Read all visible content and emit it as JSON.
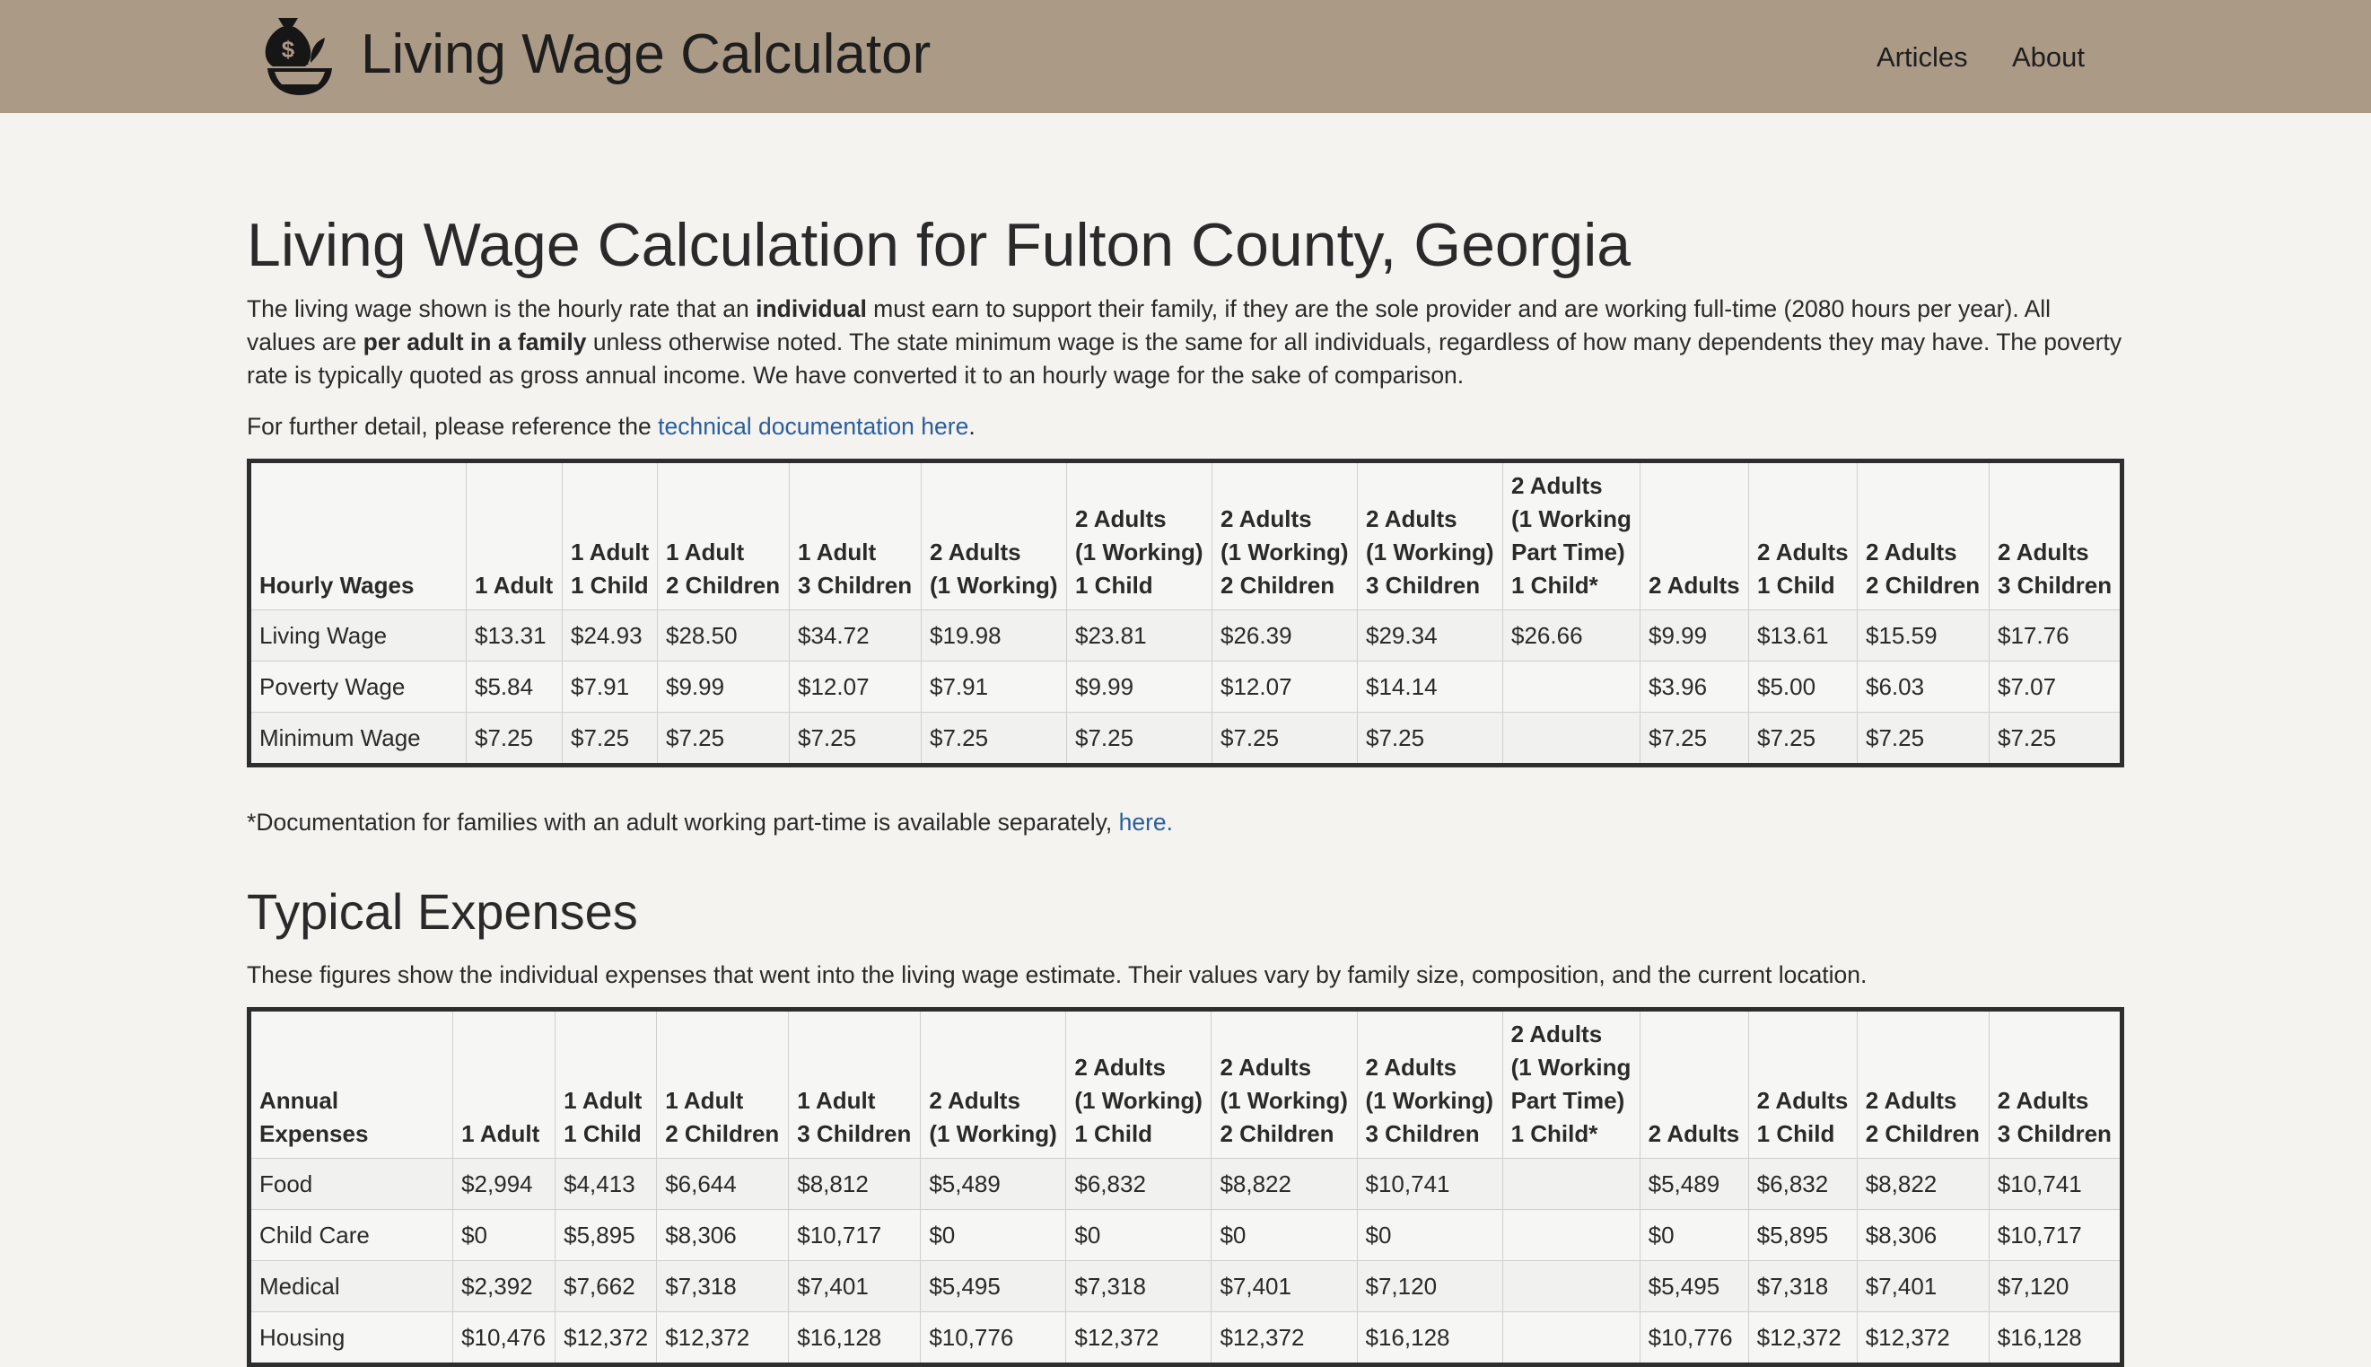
{
  "header": {
    "site_title": "Living Wage Calculator",
    "nav": [
      "Articles",
      "About"
    ],
    "logo_icon": "money-bag-bowl-icon"
  },
  "page": {
    "title": "Living Wage Calculation for Fulton County, Georgia",
    "intro": {
      "p1": "The living wage shown is the hourly rate that an ",
      "b1": "individual",
      "p2": " must earn to support their family, if they are the sole provider and are working full-time (2080 hours per year). All values are ",
      "b2": "per adult in a family",
      "p3": " unless otherwise noted. The state minimum wage is the same for all individuals, regardless of how many dependents they may have. The poverty rate is typically quoted as gross annual income. We have converted it to an hourly wage for the sake of comparison."
    },
    "detail_prefix": "For further detail, please reference the ",
    "detail_link": "technical documentation here",
    "detail_suffix": ".",
    "footnote_prefix": "*Documentation for families with an adult working part-time is available separately, ",
    "footnote_link": "here."
  },
  "hourly": {
    "header_label": "Hourly Wages",
    "columns": [
      [
        "1 Adult"
      ],
      [
        "1 Adult",
        "1 Child"
      ],
      [
        "1 Adult",
        "2 Children"
      ],
      [
        "1 Adult",
        "3 Children"
      ],
      [
        "2 Adults",
        "(1 Working)"
      ],
      [
        "2 Adults",
        "(1 Working)",
        "1 Child"
      ],
      [
        "2 Adults",
        "(1 Working)",
        "2 Children"
      ],
      [
        "2 Adults",
        "(1 Working)",
        "3 Children"
      ],
      [
        "2 Adults",
        "(1 Working",
        "Part Time)",
        "1 Child*"
      ],
      [
        "2 Adults"
      ],
      [
        "2 Adults",
        "1 Child"
      ],
      [
        "2 Adults",
        "2 Children"
      ],
      [
        "2 Adults",
        "3 Children"
      ]
    ],
    "rows": [
      {
        "label": "Living Wage",
        "values": [
          "$13.31",
          "$24.93",
          "$28.50",
          "$34.72",
          "$19.98",
          "$23.81",
          "$26.39",
          "$29.34",
          "$26.66",
          "$9.99",
          "$13.61",
          "$15.59",
          "$17.76"
        ]
      },
      {
        "label": "Poverty Wage",
        "values": [
          "$5.84",
          "$7.91",
          "$9.99",
          "$12.07",
          "$7.91",
          "$9.99",
          "$12.07",
          "$14.14",
          "",
          "$3.96",
          "$5.00",
          "$6.03",
          "$7.07"
        ]
      },
      {
        "label": "Minimum Wage",
        "values": [
          "$7.25",
          "$7.25",
          "$7.25",
          "$7.25",
          "$7.25",
          "$7.25",
          "$7.25",
          "$7.25",
          "",
          "$7.25",
          "$7.25",
          "$7.25",
          "$7.25"
        ]
      }
    ]
  },
  "expenses": {
    "section_title": "Typical Expenses",
    "description": "These figures show the individual expenses that went into the living wage estimate. Their values vary by family size, composition, and the current location.",
    "header_label": [
      "Annual",
      "Expenses"
    ],
    "rows": [
      {
        "label": "Food",
        "values": [
          "$2,994",
          "$4,413",
          "$6,644",
          "$8,812",
          "$5,489",
          "$6,832",
          "$8,822",
          "$10,741",
          "",
          "$5,489",
          "$6,832",
          "$8,822",
          "$10,741"
        ]
      },
      {
        "label": "Child Care",
        "values": [
          "$0",
          "$5,895",
          "$8,306",
          "$10,717",
          "$0",
          "$0",
          "$0",
          "$0",
          "",
          "$0",
          "$5,895",
          "$8,306",
          "$10,717"
        ]
      },
      {
        "label": "Medical",
        "values": [
          "$2,392",
          "$7,662",
          "$7,318",
          "$7,401",
          "$5,495",
          "$7,318",
          "$7,401",
          "$7,120",
          "",
          "$5,495",
          "$7,318",
          "$7,401",
          "$7,120"
        ]
      },
      {
        "label": "Housing",
        "values": [
          "$10,476",
          "$12,372",
          "$12,372",
          "$16,128",
          "$10,776",
          "$12,372",
          "$12,372",
          "$16,128",
          "",
          "$10,776",
          "$12,372",
          "$12,372",
          "$16,128"
        ]
      }
    ]
  }
}
